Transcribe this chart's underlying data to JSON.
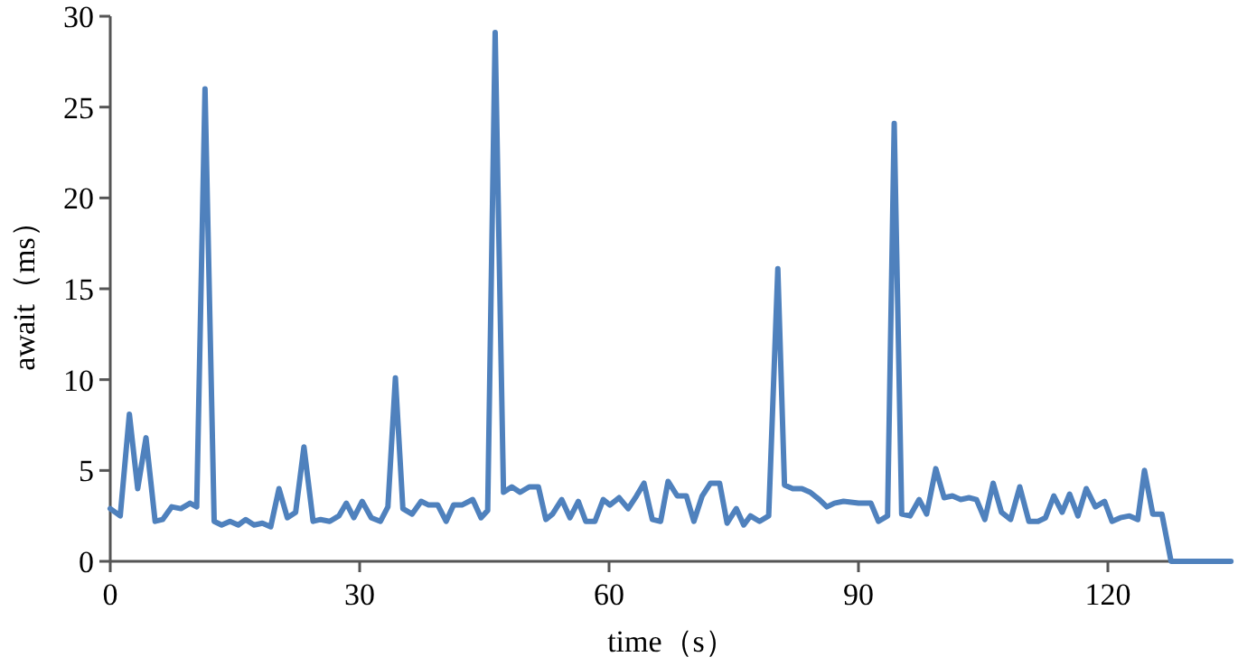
{
  "chart_data": {
    "type": "line",
    "xlabel": "time（s）",
    "ylabel": "await（ms）",
    "xlim": [
      0,
      135
    ],
    "ylim": [
      0,
      30
    ],
    "xticks": [
      0,
      30,
      60,
      90,
      120
    ],
    "yticks": [
      0,
      5,
      10,
      15,
      20,
      25,
      30
    ],
    "grid": false,
    "marker": "none",
    "line_style": "solid",
    "series": [
      {
        "color": "#4f81bd",
        "x": [
          0,
          1.2,
          2.3,
          3.3,
          4.3,
          5.4,
          6.3,
          7.4,
          8.5,
          9.6,
          10.4,
          11.4,
          12.5,
          13.4,
          14.4,
          15.4,
          16.3,
          17.3,
          18.3,
          19.3,
          20.3,
          21.3,
          22.3,
          23.3,
          24.4,
          25.3,
          26.4,
          27.5,
          28.4,
          29.3,
          30.3,
          31.4,
          32.5,
          33.4,
          34.3,
          35.2,
          36.3,
          37.4,
          38.3,
          39.4,
          40.4,
          41.3,
          42.3,
          43.6,
          44.6,
          45.4,
          46.3,
          47.3,
          48.3,
          49.3,
          50.4,
          51.5,
          52.4,
          53.2,
          54.3,
          55.3,
          56.3,
          57.2,
          58.3,
          59.3,
          60.1,
          61.2,
          62.3,
          63.3,
          64.2,
          65.2,
          66.2,
          67.1,
          68.2,
          69.3,
          70.2,
          71.2,
          72.2,
          73.3,
          74.2,
          75.3,
          76.2,
          77.0,
          78.1,
          79.2,
          80.3,
          81.1,
          82.1,
          83.2,
          84.2,
          85.3,
          86.2,
          87.1,
          88.2,
          90,
          91.5,
          92.4,
          93.5,
          94.3,
          95.2,
          96.2,
          97.3,
          98.2,
          99.3,
          100.3,
          101.3,
          102.3,
          103.3,
          104.2,
          105.2,
          106.2,
          107.2,
          108.3,
          109.4,
          110.5,
          111.6,
          112.5,
          113.5,
          114.5,
          115.4,
          116.4,
          117.4,
          118.5,
          119.6,
          120.5,
          121.5,
          122.6,
          123.6,
          124.4,
          125.4,
          126.5,
          127.6,
          134.8
        ],
        "values": [
          2.9,
          2.5,
          8.1,
          4.0,
          6.8,
          2.2,
          2.3,
          3.0,
          2.9,
          3.2,
          3.0,
          26.0,
          2.2,
          2.0,
          2.2,
          2.0,
          2.3,
          2.0,
          2.1,
          1.9,
          4.0,
          2.4,
          2.7,
          6.3,
          2.2,
          2.3,
          2.2,
          2.5,
          3.2,
          2.4,
          3.3,
          2.4,
          2.2,
          3.0,
          10.1,
          2.9,
          2.6,
          3.3,
          3.1,
          3.1,
          2.2,
          3.1,
          3.1,
          3.4,
          2.4,
          2.8,
          29.1,
          3.8,
          4.1,
          3.8,
          4.1,
          4.1,
          2.3,
          2.6,
          3.4,
          2.4,
          3.3,
          2.2,
          2.2,
          3.4,
          3.1,
          3.5,
          2.9,
          3.6,
          4.3,
          2.3,
          2.2,
          4.4,
          3.6,
          3.6,
          2.2,
          3.6,
          4.3,
          4.3,
          2.1,
          2.9,
          2.0,
          2.5,
          2.2,
          2.5,
          16.1,
          4.2,
          4.0,
          4.0,
          3.8,
          3.4,
          3.0,
          3.2,
          3.3,
          3.2,
          3.2,
          2.2,
          2.5,
          24.1,
          2.6,
          2.5,
          3.4,
          2.6,
          5.1,
          3.5,
          3.6,
          3.4,
          3.5,
          3.4,
          2.3,
          4.3,
          2.7,
          2.3,
          4.1,
          2.2,
          2.2,
          2.4,
          3.6,
          2.7,
          3.7,
          2.5,
          4.0,
          3.0,
          3.3,
          2.2,
          2.4,
          2.5,
          2.3,
          5.0,
          2.6,
          2.6,
          0,
          0
        ]
      }
    ]
  }
}
